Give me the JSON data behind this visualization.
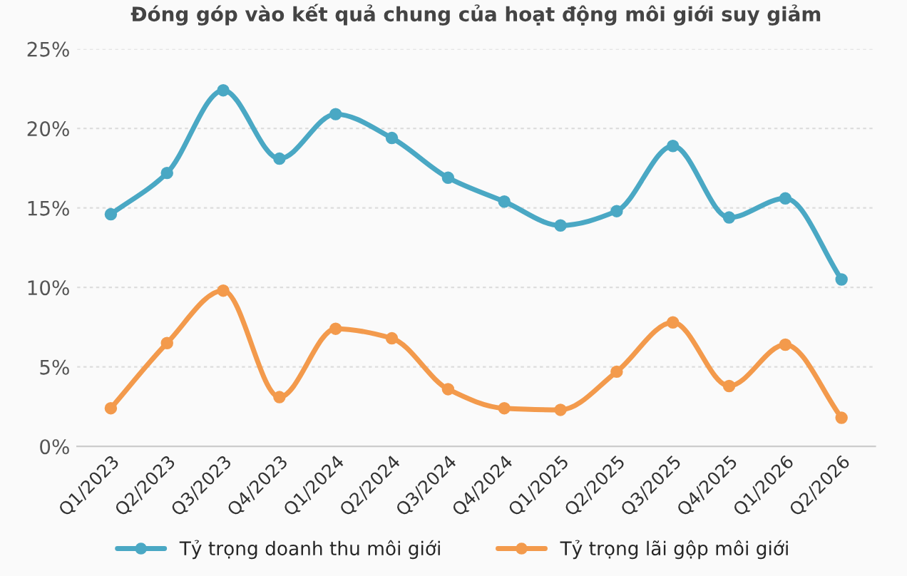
{
  "chart_data": {
    "type": "line",
    "title": "Đóng góp vào kết quả chung của hoạt động môi giới suy giảm",
    "categories": [
      "Q1/2023",
      "Q2/2023",
      "Q3/2023",
      "Q4/2023",
      "Q1/2024",
      "Q2/2024",
      "Q3/2024",
      "Q4/2024",
      "Q1/2025",
      "Q2/2025",
      "Q3/2025",
      "Q4/2025",
      "Q1/2026",
      "Q2/2026"
    ],
    "series": [
      {
        "name": "Tỷ trọng doanh thu môi giới",
        "color": "#4aa8c4",
        "values": [
          14.6,
          17.2,
          22.4,
          18.1,
          20.9,
          19.4,
          16.9,
          15.4,
          13.9,
          14.8,
          18.9,
          14.4,
          15.6,
          10.5
        ]
      },
      {
        "name": "Tỷ trọng lãi gộp môi giới",
        "color": "#f39a4c",
        "values": [
          2.4,
          6.5,
          9.8,
          3.1,
          7.4,
          6.8,
          3.6,
          2.4,
          2.3,
          4.7,
          7.8,
          3.8,
          6.4,
          1.8
        ]
      }
    ],
    "ylim": [
      0,
      25
    ],
    "yticks": [
      {
        "value": 0,
        "label": "0%"
      },
      {
        "value": 5,
        "label": "5%"
      },
      {
        "value": 10,
        "label": "10%"
      },
      {
        "value": 15,
        "label": "15%"
      },
      {
        "value": 20,
        "label": "20%"
      },
      {
        "value": 25,
        "label": "25%"
      }
    ],
    "grid": "y",
    "legend": "bottom",
    "marker": "circle",
    "line_style": "solid"
  }
}
